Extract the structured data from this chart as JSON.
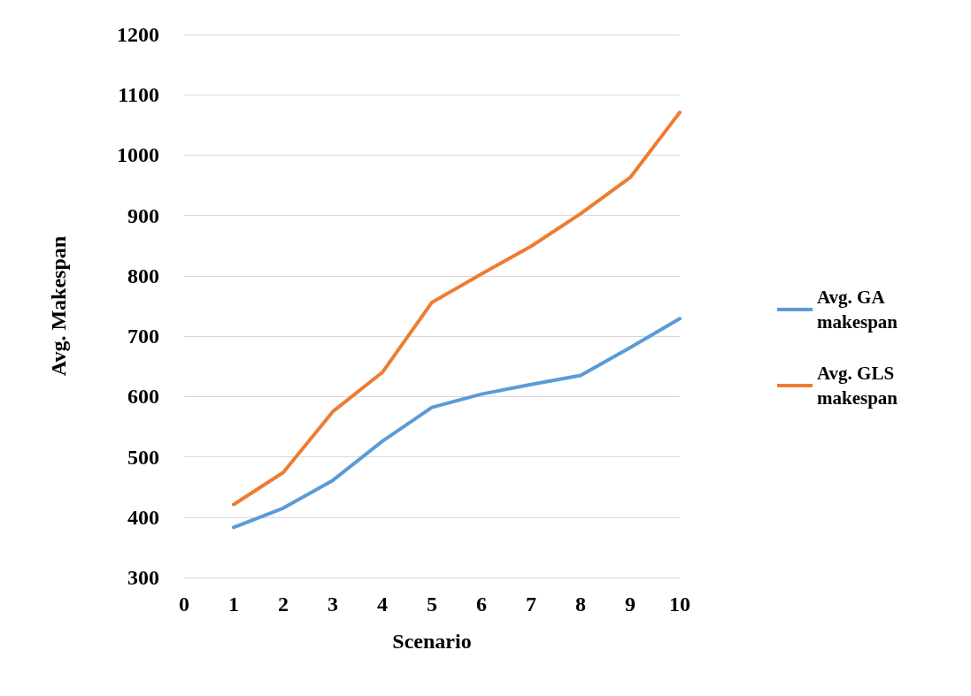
{
  "chart_data": {
    "type": "line",
    "xlabel": "Scenario",
    "ylabel": "Avg. Makespan",
    "x": [
      1,
      2,
      3,
      4,
      5,
      6,
      7,
      8,
      9,
      10
    ],
    "series": [
      {
        "name": "Avg. GA makespan",
        "color": "#5b9bd5",
        "values": [
          383,
          415,
          461,
          526,
          582,
          604,
          620,
          635,
          681,
          729
        ]
      },
      {
        "name": "Avg. GLS makespan",
        "color": "#ed7d31",
        "values": [
          421,
          474,
          575,
          640,
          756,
          803,
          849,
          903,
          963,
          1071
        ]
      }
    ],
    "xlim": [
      0,
      10
    ],
    "xticks": [
      0,
      1,
      2,
      3,
      4,
      5,
      6,
      7,
      8,
      9,
      10
    ],
    "ylim": [
      300,
      1200
    ],
    "yticks": [
      300,
      400,
      500,
      600,
      700,
      800,
      900,
      1000,
      1100,
      1200
    ],
    "grid": "y",
    "legend": "right",
    "marker": "none",
    "line_style": "solid"
  }
}
